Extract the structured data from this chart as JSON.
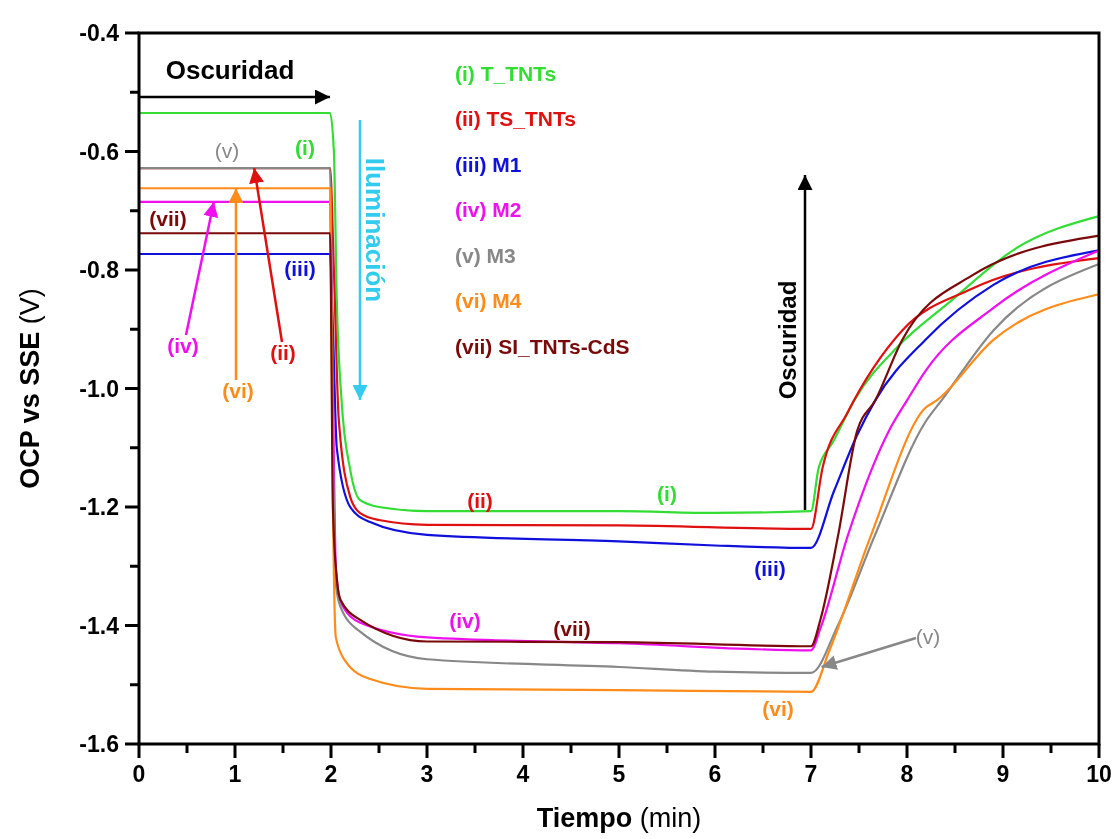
{
  "chart_data": {
    "type": "line",
    "xlabel": "Tiempo (min)",
    "ylabel": "OCP vs SSE (V)",
    "xlim": [
      0,
      10
    ],
    "ylim": [
      -1.6,
      -0.4
    ],
    "xticks": [
      0,
      {
        "value": 0.5,
        "label": null
      },
      1,
      {
        "value": 1.5,
        "label": null
      },
      2,
      {
        "value": 2.5,
        "label": null
      },
      3,
      {
        "value": 3.5,
        "label": null
      },
      4,
      {
        "value": 4.5,
        "label": null
      },
      5,
      {
        "value": 5.5,
        "label": null
      },
      6,
      {
        "value": 6.5,
        "label": null
      },
      7,
      {
        "value": 7.5,
        "label": null
      },
      8,
      {
        "value": 8.5,
        "label": null
      },
      9,
      {
        "value": 9.5,
        "label": null
      },
      10
    ],
    "yticks": [
      {
        "value": -1.6,
        "label": "-1.6"
      },
      {
        "value": -1.5,
        "label": null
      },
      {
        "value": -1.4,
        "label": "-1.4"
      },
      {
        "value": -1.3,
        "label": null
      },
      {
        "value": -1.2,
        "label": "-1.2"
      },
      {
        "value": -1.1,
        "label": null
      },
      {
        "value": -1.0,
        "label": "-1.0"
      },
      {
        "value": -0.9,
        "label": null
      },
      {
        "value": -0.8,
        "label": "-0.8"
      },
      {
        "value": -0.7,
        "label": null
      },
      {
        "value": -0.6,
        "label": "-0.6"
      },
      {
        "value": -0.5,
        "label": null
      },
      {
        "value": -0.4,
        "label": "-0.4"
      }
    ],
    "grid": false,
    "legend": "top",
    "marker": "none",
    "line_style": "solid",
    "series": [
      {
        "name": "(i) T_TNTs",
        "color": "#33dd33",
        "x": [
          0,
          1.99,
          2.03,
          2.06,
          2.11,
          2.2,
          2.3,
          2.5,
          3,
          5,
          6,
          7,
          7.08,
          7.23,
          7.45,
          7.9,
          8.43,
          9.14,
          10
        ],
        "values": [
          -0.535,
          -0.535,
          -0.6,
          -0.85,
          -1.02,
          -1.137,
          -1.188,
          -1.2,
          -1.207,
          -1.207,
          -1.21,
          -1.207,
          -1.134,
          -1.09,
          -1.02,
          -0.93,
          -0.856,
          -0.763,
          -0.709
        ]
      },
      {
        "name": "(ii) TS_TNTs",
        "color": "#e01010",
        "x": [
          0,
          1.99,
          2.03,
          2.08,
          2.2,
          2.3,
          2.5,
          3,
          5,
          7,
          7.12,
          7.38,
          7.95,
          8.67,
          10
        ],
        "values": [
          -0.628,
          -0.628,
          -0.8,
          -1.05,
          -1.183,
          -1.21,
          -1.222,
          -1.23,
          -1.231,
          -1.237,
          -1.134,
          -1.041,
          -0.902,
          -0.832,
          -0.78
        ]
      },
      {
        "name": "(iii) M1",
        "color": "#1010dd",
        "x": [
          0,
          1.99,
          2.02,
          2.06,
          2.2,
          2.4,
          3,
          5,
          6,
          7,
          7.24,
          7.48,
          7.67,
          8.19,
          8.9,
          10
        ],
        "values": [
          -0.773,
          -0.773,
          -0.9,
          -1.1,
          -1.2,
          -1.225,
          -1.247,
          -1.258,
          -1.265,
          -1.269,
          -1.173,
          -1.079,
          -1.02,
          -0.918,
          -0.825,
          -0.767
        ]
      },
      {
        "name": "(iv) M2",
        "color": "#ee11ee",
        "x": [
          0,
          1.99,
          2.02,
          2.05,
          2.1,
          2.3,
          3,
          5,
          7,
          7.1,
          7.38,
          7.81,
          8.0,
          8.19,
          8.9,
          10
        ],
        "values": [
          -0.685,
          -0.685,
          -1.0,
          -1.3,
          -1.36,
          -1.395,
          -1.42,
          -1.43,
          -1.442,
          -1.404,
          -1.25,
          -1.072,
          -1.02,
          -0.971,
          -0.864,
          -0.767
        ]
      },
      {
        "name": "(v) M3",
        "color": "#888888",
        "x": [
          0,
          1.99,
          2.02,
          2.05,
          2.1,
          2.3,
          3,
          5,
          6,
          7,
          7.28,
          7.66,
          8.19,
          8.36,
          8.9,
          10
        ],
        "values": [
          -0.628,
          -0.628,
          -1.1,
          -1.33,
          -1.369,
          -1.41,
          -1.457,
          -1.47,
          -1.478,
          -1.48,
          -1.4,
          -1.25,
          -1.057,
          -1.02,
          -0.902,
          -0.79
        ]
      },
      {
        "name": "(vi) M4",
        "color": "#ff8c1a",
        "x": [
          0,
          1.99,
          2.02,
          2.05,
          2.15,
          2.4,
          3,
          5,
          7,
          7.19,
          7.62,
          8.19,
          8.31,
          8.9,
          10
        ],
        "values": [
          -0.662,
          -0.662,
          -1.2,
          -1.42,
          -1.46,
          -1.49,
          -1.507,
          -1.509,
          -1.512,
          -1.443,
          -1.25,
          -1.033,
          -1.02,
          -0.918,
          -0.841
        ]
      },
      {
        "name": "(vii) SI_TNTs-CdS",
        "color": "#7a0a0a",
        "x": [
          0,
          1.99,
          2.02,
          2.06,
          2.1,
          2.3,
          3,
          5,
          7,
          7.1,
          7.28,
          7.48,
          7.67,
          7.95,
          8.67,
          10
        ],
        "values": [
          -0.738,
          -0.738,
          -1.2,
          -1.32,
          -1.357,
          -1.39,
          -1.427,
          -1.428,
          -1.435,
          -1.389,
          -1.25,
          -1.072,
          -1.02,
          -0.918,
          -0.81,
          -0.742
        ]
      }
    ],
    "annotations": [
      "Oscuridad",
      "Iluminación",
      "Oscuridad",
      "(i)",
      "(v)",
      "(vii)",
      "(iii)",
      {
        "text": "(iv)",
        "x": 0.78,
        "y": -0.685
      },
      {
        "text": "(ii)",
        "x": 1.2,
        "y": -0.628
      },
      {
        "text": "(vi)",
        "x": 1.01,
        "y": -0.662
      },
      "(ii)",
      "(i)",
      "(iii)",
      "(iv)",
      "(vii)",
      {
        "text": "(v)",
        "x": 7.11,
        "y": -1.47
      },
      "(vi)"
    ]
  }
}
